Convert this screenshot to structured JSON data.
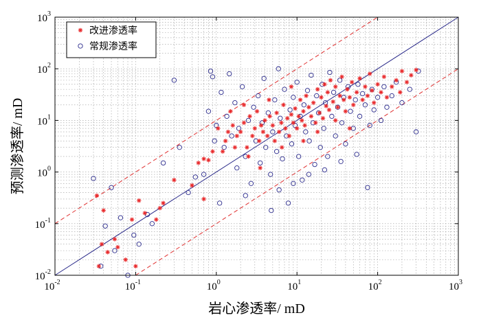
{
  "chart_data": {
    "type": "scatter",
    "xscale": "log",
    "yscale": "log",
    "xlim": [
      0.01,
      1000
    ],
    "ylim": [
      0.01,
      1000
    ],
    "xlabel": "岩心渗透率/ mD",
    "ylabel": "预测渗透率/ mD",
    "grid": true,
    "legend_position": "top-left",
    "x_ticks": [
      {
        "base": "10",
        "exp": "-2"
      },
      {
        "base": "10",
        "exp": "-1"
      },
      {
        "base": "10",
        "exp": "0"
      },
      {
        "base": "10",
        "exp": "1"
      },
      {
        "base": "10",
        "exp": "2"
      },
      {
        "base": "10",
        "exp": "3"
      }
    ],
    "y_ticks": [
      {
        "base": "10",
        "exp": "-2"
      },
      {
        "base": "10",
        "exp": "-1"
      },
      {
        "base": "10",
        "exp": "0"
      },
      {
        "base": "10",
        "exp": "1"
      },
      {
        "base": "10",
        "exp": "2"
      },
      {
        "base": "10",
        "exp": "3"
      }
    ],
    "reference_lines": [
      {
        "name": "y = x",
        "style": "solid",
        "color": "#2b2b8a",
        "factor": 1
      },
      {
        "name": "y = 10x",
        "style": "dashed",
        "color": "#e03030",
        "factor": 10
      },
      {
        "name": "y = x/10",
        "style": "dashed",
        "color": "#e03030",
        "factor": 0.1
      }
    ],
    "series": [
      {
        "name": "改进渗透率",
        "marker": "asterisk",
        "color": "#e8282a",
        "points": [
          [
            0.033,
            0.35
          ],
          [
            0.035,
            0.015
          ],
          [
            0.038,
            0.04
          ],
          [
            0.04,
            0.18
          ],
          [
            0.045,
            0.028
          ],
          [
            0.055,
            0.05
          ],
          [
            0.06,
            0.035
          ],
          [
            0.075,
            0.02
          ],
          [
            0.09,
            0.12
          ],
          [
            0.1,
            0.015
          ],
          [
            0.11,
            0.28
          ],
          [
            0.13,
            0.16
          ],
          [
            0.18,
            0.12
          ],
          [
            0.2,
            0.2
          ],
          [
            0.22,
            0.25
          ],
          [
            0.3,
            0.7
          ],
          [
            0.5,
            0.55
          ],
          [
            0.6,
            1.5
          ],
          [
            0.7,
            1.8
          ],
          [
            0.8,
            1.7
          ],
          [
            0.9,
            2.5
          ],
          [
            1.05,
            7
          ],
          [
            1.2,
            2.5
          ],
          [
            1.3,
            4
          ],
          [
            1.4,
            6
          ],
          [
            1.6,
            8
          ],
          [
            1.7,
            3
          ],
          [
            1.8,
            5
          ],
          [
            2,
            6
          ],
          [
            2.2,
            9
          ],
          [
            2.4,
            3
          ],
          [
            2.6,
            12
          ],
          [
            2.8,
            5
          ],
          [
            3,
            7
          ],
          [
            3.2,
            15
          ],
          [
            3.4,
            4
          ],
          [
            3.6,
            8
          ],
          [
            3.8,
            6
          ],
          [
            4,
            10
          ],
          [
            4.3,
            5
          ],
          [
            4.6,
            12
          ],
          [
            5,
            8
          ],
          [
            5.3,
            4
          ],
          [
            5.6,
            14
          ],
          [
            6,
            6
          ],
          [
            6.4,
            9
          ],
          [
            6.8,
            20
          ],
          [
            7.2,
            7
          ],
          [
            7.6,
            11
          ],
          [
            8,
            5
          ],
          [
            8.5,
            13
          ],
          [
            9,
            9
          ],
          [
            9.5,
            17
          ],
          [
            10,
            7
          ],
          [
            10.5,
            12
          ],
          [
            11,
            25
          ],
          [
            11.5,
            10
          ],
          [
            12,
            15
          ],
          [
            12.5,
            8
          ],
          [
            13,
            30
          ],
          [
            14,
            18
          ],
          [
            15,
            12
          ],
          [
            16,
            22
          ],
          [
            17,
            9
          ],
          [
            18,
            40
          ],
          [
            19,
            14
          ],
          [
            20,
            28
          ],
          [
            21,
            11
          ],
          [
            22,
            50
          ],
          [
            23,
            19
          ],
          [
            24,
            35
          ],
          [
            25,
            16
          ],
          [
            26,
            60
          ],
          [
            28,
            23
          ],
          [
            30,
            45
          ],
          [
            32,
            18
          ],
          [
            34,
            30
          ],
          [
            36,
            70
          ],
          [
            38,
            25
          ],
          [
            40,
            15
          ],
          [
            42,
            40
          ],
          [
            45,
            28
          ],
          [
            48,
            55
          ],
          [
            50,
            20
          ],
          [
            55,
            35
          ],
          [
            60,
            65
          ],
          [
            65,
            25
          ],
          [
            70,
            45
          ],
          [
            75,
            30
          ],
          [
            80,
            80
          ],
          [
            85,
            38
          ],
          [
            90,
            22
          ],
          [
            100,
            50
          ],
          [
            110,
            35
          ],
          [
            120,
            70
          ],
          [
            130,
            28
          ],
          [
            150,
            45
          ],
          [
            170,
            60
          ],
          [
            190,
            35
          ],
          [
            200,
            90
          ],
          [
            230,
            55
          ],
          [
            260,
            75
          ],
          [
            300,
            95
          ],
          [
            0.7,
            0.3
          ],
          [
            2.5,
            2
          ],
          [
            3.5,
            1.2
          ],
          [
            6.5,
            3
          ],
          [
            12,
            4
          ],
          [
            18,
            6
          ],
          [
            30,
            10
          ],
          [
            45,
            7
          ],
          [
            1.5,
            15
          ],
          [
            2.2,
            20
          ],
          [
            4.5,
            25
          ],
          [
            8.5,
            45
          ]
        ]
      },
      {
        "name": "常规渗透率",
        "marker": "circle",
        "color": "#2a2a8c",
        "points": [
          [
            0.03,
            0.75
          ],
          [
            0.037,
            0.015
          ],
          [
            0.042,
            0.09
          ],
          [
            0.05,
            0.5
          ],
          [
            0.055,
            0.03
          ],
          [
            0.065,
            0.13
          ],
          [
            0.08,
            0.01
          ],
          [
            0.095,
            0.06
          ],
          [
            0.11,
            0.04
          ],
          [
            0.14,
            0.15
          ],
          [
            0.16,
            0.1
          ],
          [
            0.22,
            1.5
          ],
          [
            0.3,
            60
          ],
          [
            0.35,
            3
          ],
          [
            0.45,
            0.4
          ],
          [
            0.55,
            0.8
          ],
          [
            0.7,
            0.9
          ],
          [
            0.8,
            15
          ],
          [
            0.85,
            90
          ],
          [
            0.9,
            70
          ],
          [
            0.95,
            4
          ],
          [
            1,
            8
          ],
          [
            1.1,
            0.25
          ],
          [
            1.15,
            35
          ],
          [
            1.25,
            3
          ],
          [
            1.35,
            12
          ],
          [
            1.45,
            80
          ],
          [
            1.55,
            5
          ],
          [
            1.7,
            22
          ],
          [
            1.8,
            1.2
          ],
          [
            1.9,
            7
          ],
          [
            2.1,
            45
          ],
          [
            2.3,
            2
          ],
          [
            2.5,
            10
          ],
          [
            2.7,
            0.6
          ],
          [
            2.9,
            18
          ],
          [
            3.1,
            4
          ],
          [
            3.3,
            30
          ],
          [
            3.5,
            1.5
          ],
          [
            3.7,
            9
          ],
          [
            3.9,
            65
          ],
          [
            4.1,
            3
          ],
          [
            4.4,
            14
          ],
          [
            4.7,
            0.9
          ],
          [
            5,
            6
          ],
          [
            5.3,
            25
          ],
          [
            5.6,
            2.5
          ],
          [
            5.9,
            100
          ],
          [
            6.2,
            11
          ],
          [
            6.6,
            1.8
          ],
          [
            7,
            40
          ],
          [
            7.4,
            5
          ],
          [
            7.8,
            0.25
          ],
          [
            8.2,
            16
          ],
          [
            8.6,
            3.5
          ],
          [
            9,
            28
          ],
          [
            9.5,
            8
          ],
          [
            10,
            55
          ],
          [
            10.5,
            2
          ],
          [
            11,
            12
          ],
          [
            11.6,
            0.7
          ],
          [
            12.2,
            20
          ],
          [
            12.8,
            6
          ],
          [
            13.5,
            38
          ],
          [
            14.2,
            4
          ],
          [
            15,
            75
          ],
          [
            15.8,
            9
          ],
          [
            16.6,
            1.4
          ],
          [
            17.5,
            30
          ],
          [
            18.5,
            14
          ],
          [
            19.5,
            3
          ],
          [
            20.5,
            50
          ],
          [
            21.5,
            7
          ],
          [
            22.5,
            22
          ],
          [
            24,
            2
          ],
          [
            25.5,
            85
          ],
          [
            27,
            12
          ],
          [
            28.5,
            35
          ],
          [
            30,
            5
          ],
          [
            32,
            18
          ],
          [
            34,
            60
          ],
          [
            36,
            9
          ],
          [
            38,
            28
          ],
          [
            40,
            3.5
          ],
          [
            43,
            45
          ],
          [
            46,
            15
          ],
          [
            50,
            7
          ],
          [
            53,
            25
          ],
          [
            57,
            50
          ],
          [
            60,
            12
          ],
          [
            65,
            33
          ],
          [
            70,
            20
          ],
          [
            75,
            0.5
          ],
          [
            80,
            8
          ],
          [
            85,
            40
          ],
          [
            90,
            16
          ],
          [
            100,
            28
          ],
          [
            110,
            10
          ],
          [
            120,
            45
          ],
          [
            130,
            18
          ],
          [
            150,
            30
          ],
          [
            170,
            55
          ],
          [
            200,
            22
          ],
          [
            250,
            40
          ],
          [
            300,
            6
          ],
          [
            320,
            90
          ],
          [
            2.3,
            0.35
          ],
          [
            4.8,
            0.18
          ],
          [
            6,
            0.45
          ],
          [
            9,
            0.6
          ],
          [
            14,
            0.9
          ],
          [
            22,
            1.1
          ],
          [
            35,
            1.6
          ],
          [
            55,
            2.2
          ]
        ]
      }
    ]
  }
}
